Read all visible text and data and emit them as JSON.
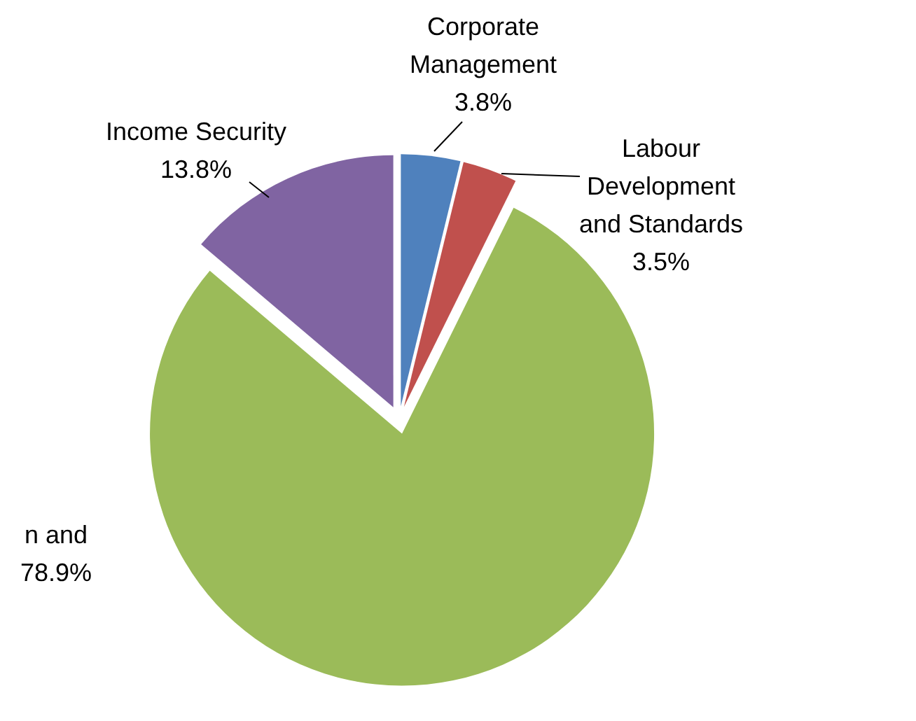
{
  "chart_data": {
    "type": "pie",
    "categories": [
      "Corporate Management",
      "Labour Development and Standards",
      "n and",
      "Income Security"
    ],
    "values": [
      3.8,
      3.5,
      78.9,
      13.8
    ],
    "colors": [
      "#4f81bd",
      "#c0504d",
      "#9bbb59",
      "#8064a2"
    ],
    "value_labels": [
      "3.8%",
      "3.5%",
      "78.9%",
      "13.8%"
    ]
  }
}
